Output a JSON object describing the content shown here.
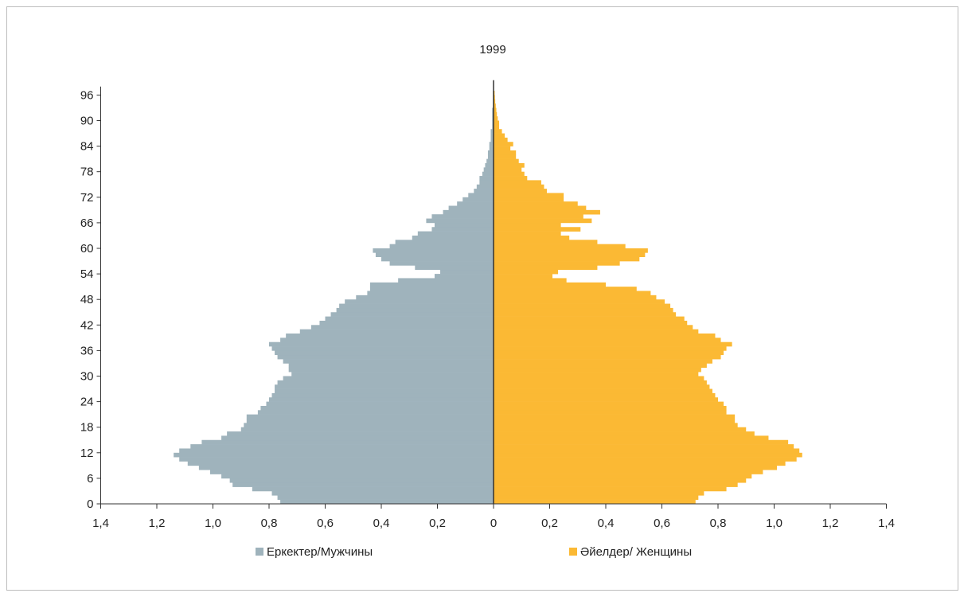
{
  "colors": {
    "male": "#9fb3bc",
    "female": "#fbb934",
    "axis": "#333333"
  },
  "chart_data": {
    "type": "bar",
    "title": "1999",
    "xlabel": "",
    "ylabel": "",
    "xlim": [
      -1.4,
      1.4
    ],
    "ylim": [
      0,
      98
    ],
    "x_ticks": [
      -1.4,
      -1.2,
      -1.0,
      -0.8,
      -0.6,
      -0.4,
      -0.2,
      0,
      0.2,
      0.4,
      0.6,
      0.8,
      1.0,
      1.2,
      1.4
    ],
    "x_tick_labels": [
      "1,4",
      "1,2",
      "1,0",
      "0,8",
      "0,6",
      "0,4",
      "0,2",
      "0",
      "0,2",
      "0,4",
      "0,6",
      "0,8",
      "1,0",
      "1,2",
      "1,4"
    ],
    "y_ticks": [
      0,
      6,
      12,
      18,
      24,
      30,
      36,
      42,
      48,
      54,
      60,
      66,
      72,
      78,
      84,
      90,
      96
    ],
    "y_tick_labels": [
      "0",
      "6",
      "12",
      "18",
      "24",
      "30",
      "36",
      "42",
      "48",
      "54",
      "60",
      "66",
      "72",
      "78",
      "84",
      "90",
      "96"
    ],
    "legend": {
      "position": "bottom",
      "items": [
        "Еркектер/Мужчины",
        "Әйелдер/ Женщины"
      ]
    },
    "ages": [
      0,
      1,
      2,
      3,
      4,
      5,
      6,
      7,
      8,
      9,
      10,
      11,
      12,
      13,
      14,
      15,
      16,
      17,
      18,
      19,
      20,
      21,
      22,
      23,
      24,
      25,
      26,
      27,
      28,
      29,
      30,
      31,
      32,
      33,
      34,
      35,
      36,
      37,
      38,
      39,
      40,
      41,
      42,
      43,
      44,
      45,
      46,
      47,
      48,
      49,
      50,
      51,
      52,
      53,
      54,
      55,
      56,
      57,
      58,
      59,
      60,
      61,
      62,
      63,
      64,
      65,
      66,
      67,
      68,
      69,
      70,
      71,
      72,
      73,
      74,
      75,
      76,
      77,
      78,
      79,
      80,
      81,
      82,
      83,
      84,
      85,
      86,
      87,
      88,
      89,
      90,
      91,
      92,
      93,
      94,
      95,
      96
    ],
    "series": [
      {
        "name": "Еркектер/Мужчины",
        "values": [
          0.76,
          0.77,
          0.79,
          0.86,
          0.93,
          0.94,
          0.97,
          1.01,
          1.05,
          1.09,
          1.12,
          1.14,
          1.12,
          1.08,
          1.04,
          0.97,
          0.95,
          0.9,
          0.89,
          0.88,
          0.88,
          0.84,
          0.83,
          0.81,
          0.8,
          0.79,
          0.78,
          0.78,
          0.77,
          0.75,
          0.72,
          0.73,
          0.73,
          0.75,
          0.77,
          0.78,
          0.79,
          0.8,
          0.76,
          0.74,
          0.69,
          0.65,
          0.62,
          0.6,
          0.58,
          0.56,
          0.55,
          0.53,
          0.49,
          0.45,
          0.44,
          0.44,
          0.34,
          0.21,
          0.19,
          0.28,
          0.37,
          0.4,
          0.42,
          0.43,
          0.37,
          0.35,
          0.29,
          0.27,
          0.22,
          0.21,
          0.24,
          0.22,
          0.18,
          0.16,
          0.13,
          0.11,
          0.09,
          0.07,
          0.06,
          0.05,
          0.05,
          0.04,
          0.035,
          0.03,
          0.025,
          0.02,
          0.02,
          0.015,
          0.015,
          0.01,
          0.01,
          0.01,
          0.005,
          0.005,
          0.005,
          0.005,
          0.005,
          0.002,
          0.002,
          0.002,
          0.002
        ]
      },
      {
        "name": "Әйелдер/ Женщины",
        "values": [
          0.72,
          0.73,
          0.75,
          0.83,
          0.87,
          0.9,
          0.92,
          0.96,
          1.01,
          1.04,
          1.08,
          1.1,
          1.09,
          1.07,
          1.05,
          0.98,
          0.93,
          0.9,
          0.87,
          0.86,
          0.86,
          0.83,
          0.83,
          0.82,
          0.8,
          0.79,
          0.78,
          0.77,
          0.76,
          0.75,
          0.73,
          0.74,
          0.76,
          0.78,
          0.81,
          0.82,
          0.83,
          0.85,
          0.81,
          0.79,
          0.73,
          0.71,
          0.69,
          0.68,
          0.65,
          0.64,
          0.63,
          0.61,
          0.58,
          0.56,
          0.51,
          0.4,
          0.26,
          0.21,
          0.23,
          0.37,
          0.45,
          0.52,
          0.54,
          0.55,
          0.47,
          0.37,
          0.27,
          0.24,
          0.31,
          0.24,
          0.35,
          0.32,
          0.38,
          0.33,
          0.3,
          0.25,
          0.25,
          0.19,
          0.18,
          0.17,
          0.12,
          0.11,
          0.1,
          0.11,
          0.09,
          0.08,
          0.08,
          0.06,
          0.07,
          0.05,
          0.04,
          0.03,
          0.02,
          0.02,
          0.015,
          0.012,
          0.01,
          0.008,
          0.006,
          0.005,
          0.004
        ]
      }
    ]
  }
}
